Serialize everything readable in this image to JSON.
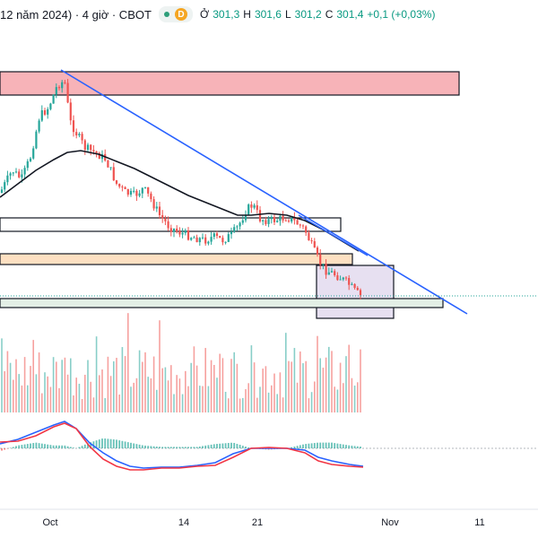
{
  "header": {
    "title": "12 năm 2024) · 4 giờ · CBOT",
    "d_badge": "D",
    "open_label": "Ở",
    "open": "301,3",
    "high_label": "H",
    "high": "301,6",
    "low_label": "L",
    "low": "301,2",
    "close_label": "C",
    "close": "301,4",
    "change": "+0,1 (+0,03%)"
  },
  "colors": {
    "up": "#26a69a",
    "down": "#ef5350",
    "trendline": "#2962ff",
    "ma": "#131722",
    "macd": "#2962ff",
    "signal": "#f23645",
    "zone_red": "#f7b3b8",
    "zone_orange": "#fde0c2",
    "zone_green": "#e3efe6",
    "zone_purple": "#e7e0f1"
  },
  "chart_data": {
    "type": "candlestick",
    "xlabel": "",
    "ylabel": "",
    "x_ticks": [
      "Oct",
      "14",
      "21",
      "Nov",
      "11"
    ],
    "last_price_line": "dotted-green",
    "panels": [
      "price",
      "volume",
      "macd"
    ],
    "grid": false
  }
}
